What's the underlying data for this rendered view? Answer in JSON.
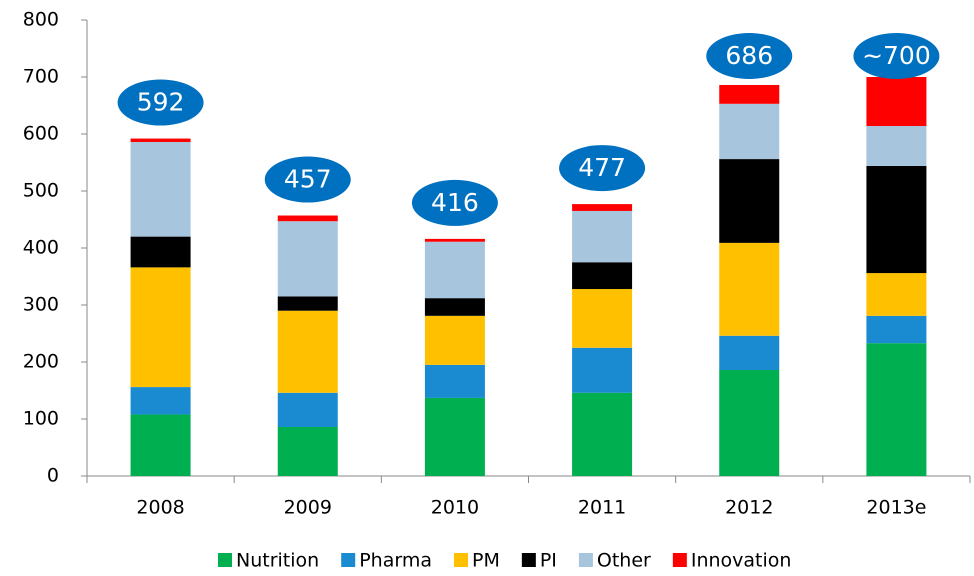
{
  "chart_data": {
    "type": "stacked_bar",
    "categories": [
      "2008",
      "2009",
      "2010",
      "2011",
      "2012",
      "2013e"
    ],
    "series": [
      {
        "name": "Nutrition",
        "color": "#00b050",
        "values": [
          108,
          86,
          137,
          146,
          186,
          233
        ]
      },
      {
        "name": "Pharma",
        "color": "#1a8bd0",
        "values": [
          48,
          60,
          58,
          79,
          60,
          48
        ]
      },
      {
        "name": "PM",
        "color": "#ffc000",
        "values": [
          210,
          144,
          86,
          103,
          163,
          75
        ]
      },
      {
        "name": "PI",
        "color": "#000000",
        "values": [
          54,
          25,
          31,
          47,
          147,
          188
        ]
      },
      {
        "name": "Other",
        "color": "#a7c6de",
        "values": [
          166,
          132,
          99,
          90,
          97,
          70
        ]
      },
      {
        "name": "Innovation",
        "color": "#ff0000",
        "values": [
          6,
          10,
          5,
          12,
          33,
          86
        ]
      }
    ],
    "annotations": [
      "592",
      "457",
      "416",
      "477",
      "686",
      "~700"
    ],
    "annotation_color": "#0070c0",
    "ylim": [
      0,
      800
    ],
    "yticks": [
      0,
      100,
      200,
      300,
      400,
      500,
      600,
      700,
      800
    ]
  }
}
